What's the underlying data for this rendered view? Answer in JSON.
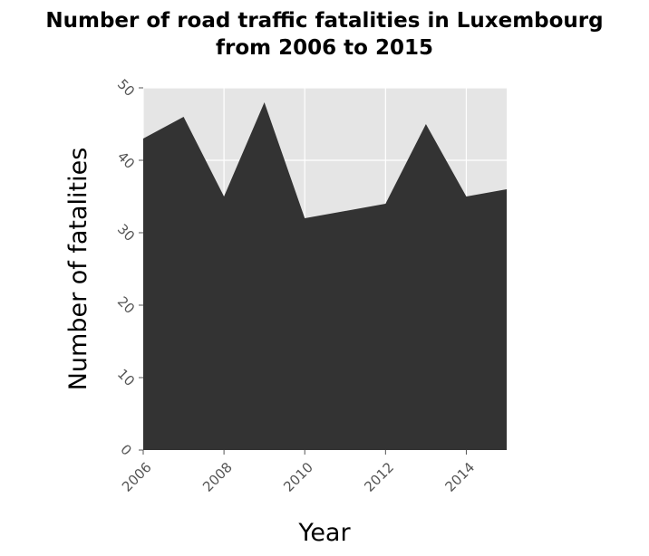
{
  "chart_data": {
    "type": "area",
    "title_lines": [
      "Number of road traffic fatalities in Luxembourg",
      "from 2006 to 2015"
    ],
    "xlabel": "Year",
    "ylabel": "Number of fatalities",
    "x": [
      2006,
      2007,
      2008,
      2009,
      2010,
      2011,
      2012,
      2013,
      2014,
      2015
    ],
    "values": [
      43,
      46,
      35,
      48,
      32,
      33,
      34,
      45,
      35,
      36
    ],
    "xlim": [
      2006,
      2015
    ],
    "ylim": [
      0,
      50
    ],
    "x_ticks": [
      2006,
      2008,
      2010,
      2012,
      2014
    ],
    "y_ticks": [
      0,
      10,
      20,
      30,
      40,
      50
    ],
    "grid": true,
    "legend": "none",
    "colors": {
      "fill": "#333333",
      "panel": "#e5e5e5",
      "grid": "#ffffff",
      "tick": "#555555"
    }
  }
}
